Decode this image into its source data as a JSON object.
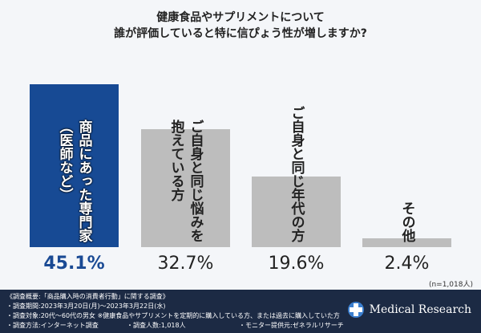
{
  "chart_data": {
    "type": "bar",
    "title": [
      "健康食品やサプリメントについて",
      "誰が評価していると特に信ぴょう性が増しますか?"
    ],
    "categories": [
      "商品にあった専門家（医師など）",
      "ご自身と同じ悩みを抱えている方",
      "ご自身と同じ年代の方",
      "その他"
    ],
    "category_display": [
      "商品にあった専門家\n（医師など）",
      "ご自身と同じ悩みを\n抱えている方",
      "ご自身と同じ年代の方",
      "その他"
    ],
    "values": [
      45.1,
      32.7,
      19.6,
      2.4
    ],
    "value_labels": [
      "45.1%",
      "32.7%",
      "19.6%",
      "2.4%"
    ],
    "unit": "%",
    "sample_note": "(n=1,018人)",
    "colors": {
      "highlight": "#174a94",
      "default": "#bdbdbd"
    },
    "grid": false
  },
  "footer": {
    "lines": [
      "《調査概要:「商品購入時の消費者行動」に関する調査》",
      "・調査期間:2023年3月20日(月)〜2023年3月22日(水)",
      "・調査対象:20代〜60代の男女 ※健康食品やサプリメントを定期的に購入している方、または過去に購入していた方"
    ],
    "method": "・調査方法:インターネット調査",
    "count": "・調査人数:1,018人",
    "provider": "・モニター提供元:ゼネラルリサーチ",
    "brand": "Medical Research"
  }
}
